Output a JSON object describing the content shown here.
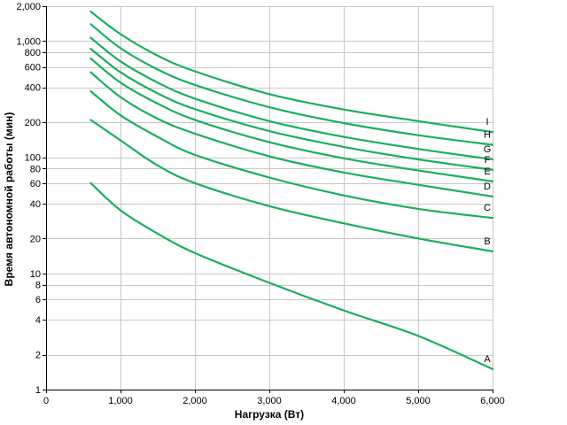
{
  "chart_data": {
    "type": "line",
    "title": "",
    "xlabel": "Нагрузка (Вт)",
    "ylabel": "Время автономной работы (мин)",
    "x_scale": "linear",
    "y_scale": "log",
    "xlim": [
      0,
      6000
    ],
    "ylim": [
      1,
      2000
    ],
    "x_ticks": [
      {
        "value": 0,
        "label": "0"
      },
      {
        "value": 1000,
        "label": "1,000"
      },
      {
        "value": 2000,
        "label": "2,000"
      },
      {
        "value": 3000,
        "label": "3,000"
      },
      {
        "value": 4000,
        "label": "4,000"
      },
      {
        "value": 5000,
        "label": "5,000"
      },
      {
        "value": 6000,
        "label": "6,000"
      }
    ],
    "y_ticks": [
      {
        "value": 1,
        "label": "1"
      },
      {
        "value": 2,
        "label": "2"
      },
      {
        "value": 4,
        "label": "4"
      },
      {
        "value": 6,
        "label": "6"
      },
      {
        "value": 8,
        "label": "8"
      },
      {
        "value": 10,
        "label": "10"
      },
      {
        "value": 20,
        "label": "20"
      },
      {
        "value": 40,
        "label": "40"
      },
      {
        "value": 60,
        "label": "60"
      },
      {
        "value": 80,
        "label": "80"
      },
      {
        "value": 100,
        "label": "100"
      },
      {
        "value": 200,
        "label": "200"
      },
      {
        "value": 400,
        "label": "400"
      },
      {
        "value": 600,
        "label": "600"
      },
      {
        "value": 800,
        "label": "800"
      },
      {
        "value": 1000,
        "label": "1,000"
      },
      {
        "value": 2000,
        "label": "2,000"
      }
    ],
    "grid": true,
    "line_color": "#1aaf5d",
    "series": [
      {
        "name": "A",
        "x": [
          600,
          1000,
          1500,
          2000,
          3000,
          4000,
          5000,
          6000
        ],
        "values": [
          60,
          35,
          22,
          15,
          8.3,
          4.8,
          2.9,
          1.5
        ]
      },
      {
        "name": "B",
        "x": [
          600,
          1000,
          1500,
          2000,
          3000,
          4000,
          5000,
          6000
        ],
        "values": [
          210,
          140,
          85,
          60,
          38,
          27,
          20,
          15.5
        ]
      },
      {
        "name": "C",
        "x": [
          600,
          1000,
          1500,
          2000,
          3000,
          4000,
          5000,
          6000
        ],
        "values": [
          370,
          230,
          150,
          105,
          67,
          47,
          36,
          30
        ]
      },
      {
        "name": "D",
        "x": [
          600,
          1000,
          1500,
          2000,
          3000,
          4000,
          5000,
          6000
        ],
        "values": [
          540,
          330,
          215,
          160,
          102,
          74,
          58,
          46
        ]
      },
      {
        "name": "E",
        "x": [
          600,
          1000,
          1500,
          2000,
          3000,
          4000,
          5000,
          6000
        ],
        "values": [
          710,
          440,
          290,
          210,
          135,
          98,
          77,
          62
        ]
      },
      {
        "name": "F",
        "x": [
          600,
          1000,
          1500,
          2000,
          3000,
          4000,
          5000,
          6000
        ],
        "values": [
          860,
          540,
          355,
          260,
          168,
          123,
          96,
          78
        ]
      },
      {
        "name": "G",
        "x": [
          600,
          1000,
          1500,
          2000,
          3000,
          4000,
          5000,
          6000
        ],
        "values": [
          1070,
          670,
          440,
          320,
          205,
          150,
          118,
          96
        ]
      },
      {
        "name": "H",
        "x": [
          600,
          1000,
          1500,
          2000,
          3000,
          4000,
          5000,
          6000
        ],
        "values": [
          1400,
          870,
          570,
          420,
          270,
          197,
          155,
          128
        ]
      },
      {
        "name": "I",
        "x": [
          600,
          1000,
          1500,
          2000,
          3000,
          4000,
          5000,
          6000
        ],
        "values": [
          1800,
          1150,
          750,
          550,
          350,
          258,
          205,
          165
        ]
      }
    ]
  }
}
